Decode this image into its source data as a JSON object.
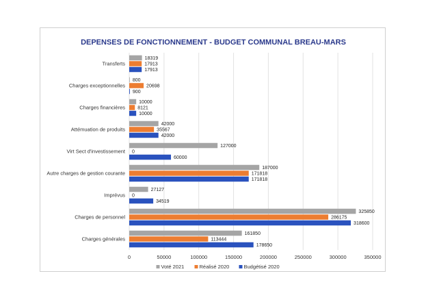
{
  "chart_data": {
    "type": "bar",
    "orientation": "horizontal",
    "title": "DEPENSES DE FONCTIONNEMENT - BUDGET COMMUNAL BREAU-MARS",
    "categories": [
      "Transferts",
      "Charges exceptionnelles",
      "Charges financières",
      "Attémuation de produits",
      "Virt Sect d'investissement",
      "Autre charges de gestion courante",
      "Imprévus",
      "Charges de personnel",
      "Charges générales"
    ],
    "series": [
      {
        "name": "Voté 2021",
        "color": "#a5a5a5",
        "values": [
          18319,
          800,
          10000,
          42000,
          127000,
          187000,
          27127,
          325850,
          161850
        ],
        "labels": [
          "18319",
          "800",
          "10000",
          "42000",
          "127000",
          "187000",
          "27127",
          "325850",
          "161850"
        ]
      },
      {
        "name": "Réalisé 2020",
        "color": "#ed7d31",
        "values": [
          17913,
          20698,
          8121,
          35567,
          0,
          171818,
          0,
          286175,
          113444
        ],
        "labels": [
          "17913",
          "20698",
          "8121",
          "35567",
          "0",
          "171818",
          "0",
          "286175",
          "113444"
        ]
      },
      {
        "name": "Budgétisé 2020",
        "color": "#2a52be",
        "values": [
          17913,
          900,
          10000,
          42000,
          60000,
          171818,
          34519,
          318600,
          178650
        ],
        "labels": [
          "17913",
          "900",
          "10000",
          "42000",
          "60000",
          "171818",
          "34519",
          "318600",
          "178650"
        ]
      }
    ],
    "xlim": [
      0,
      350000
    ],
    "xticks": [
      0,
      50000,
      100000,
      150000,
      200000,
      250000,
      300000,
      350000
    ],
    "xtick_labels": [
      "0",
      "50000",
      "100000",
      "150000",
      "200000",
      "250000",
      "300000",
      "350000"
    ],
    "grid": true,
    "legend_position": "bottom"
  }
}
